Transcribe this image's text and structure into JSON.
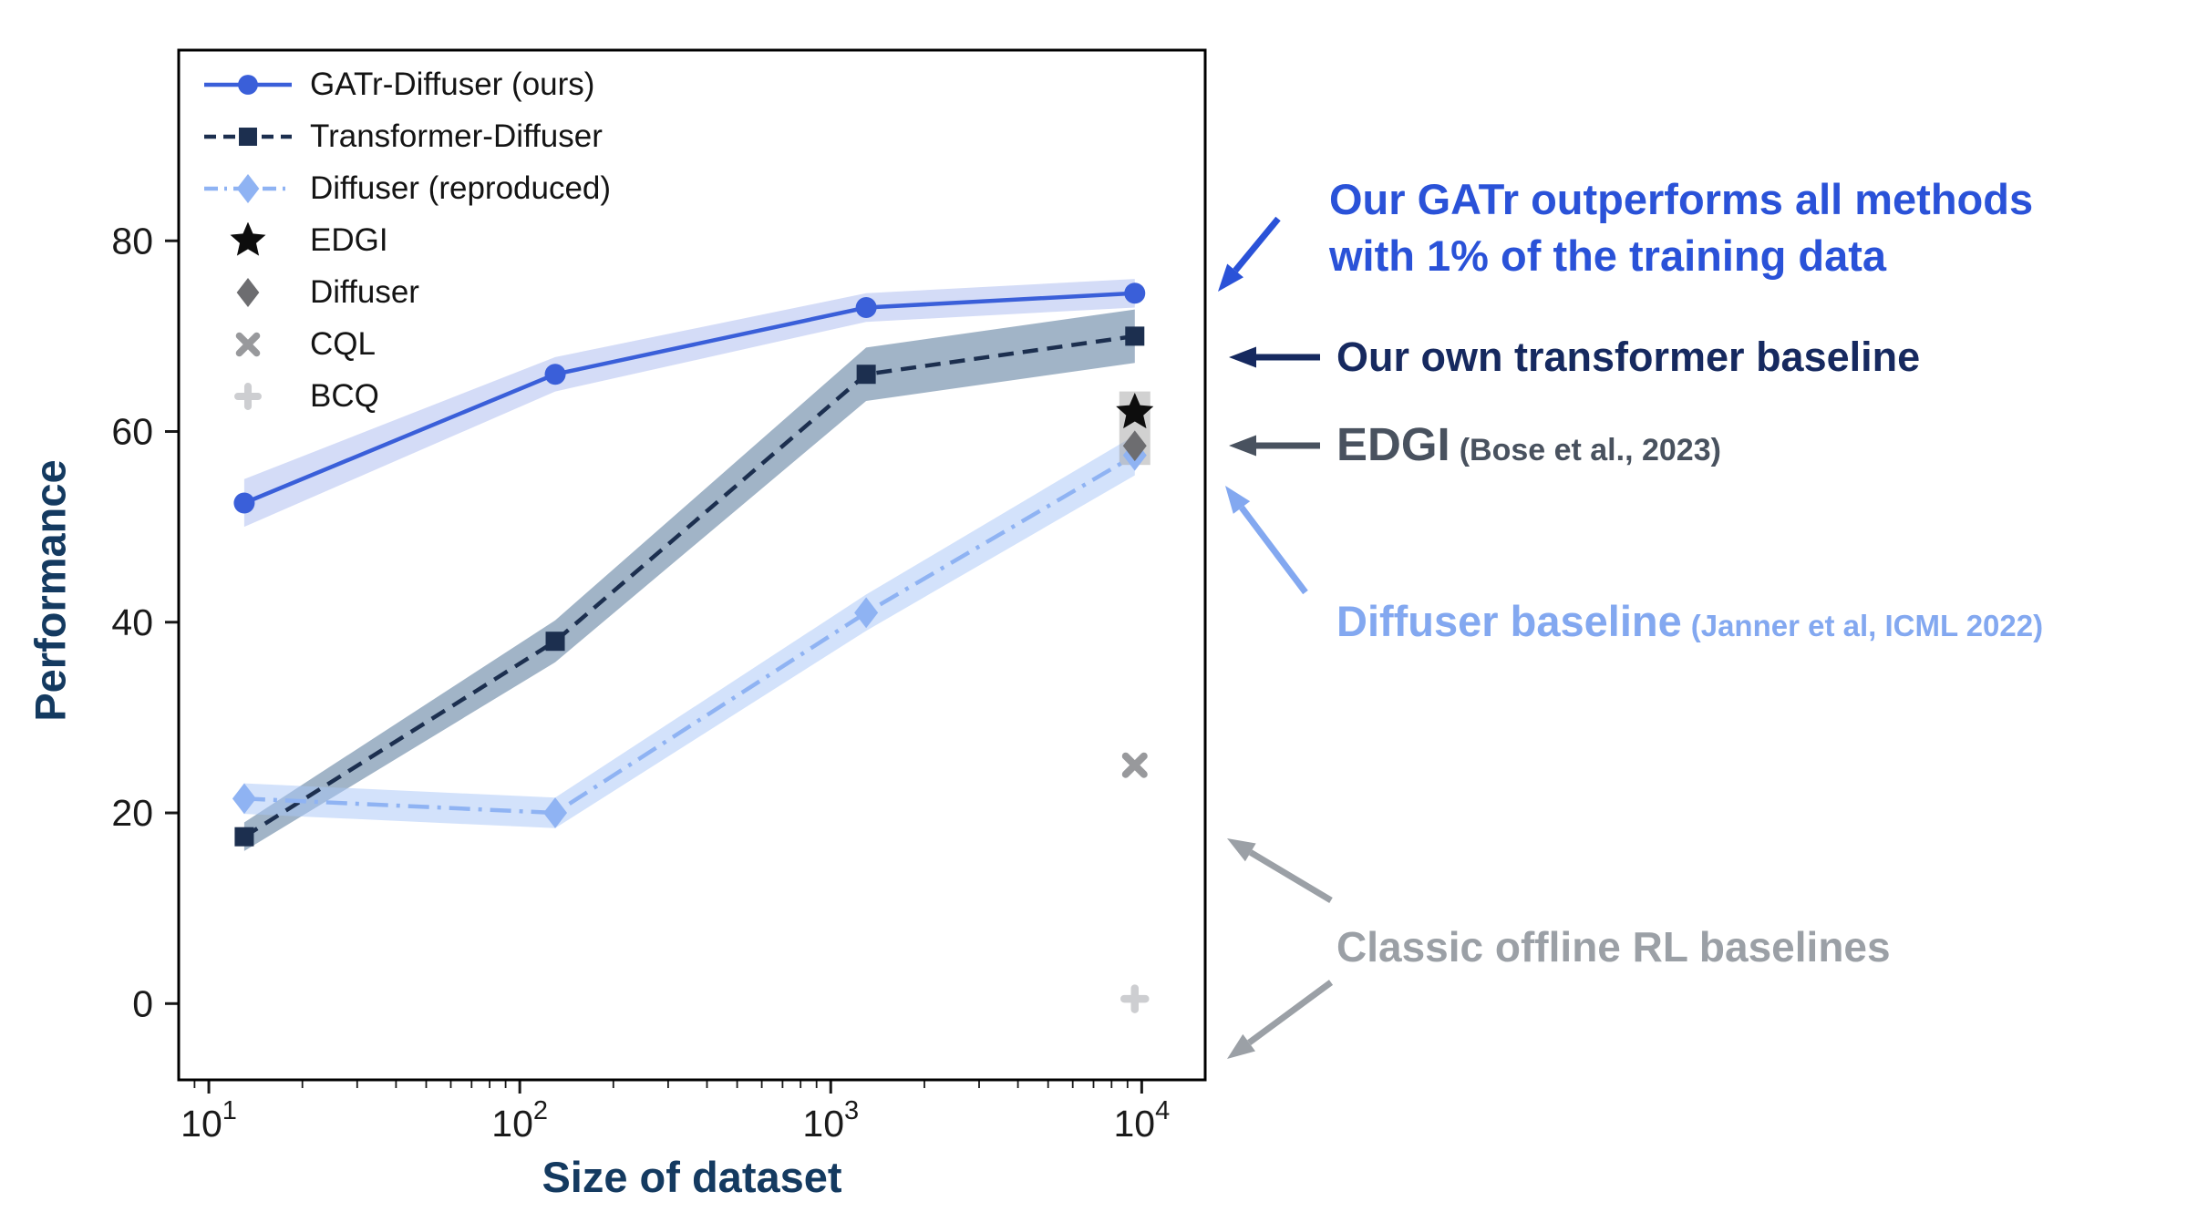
{
  "chart_data": {
    "type": "line",
    "title": "",
    "xlabel": "Size of dataset",
    "ylabel": "Performance",
    "x_scale": "log",
    "xlim": [
      8,
      16000
    ],
    "ylim": [
      -8,
      100
    ],
    "x_ticks": [
      10,
      100,
      1000,
      10000
    ],
    "x_tick_labels": [
      {
        "base": "10",
        "exp": "1"
      },
      {
        "base": "10",
        "exp": "2"
      },
      {
        "base": "10",
        "exp": "3"
      },
      {
        "base": "10",
        "exp": "4"
      }
    ],
    "y_ticks": [
      0,
      20,
      40,
      60,
      80
    ],
    "grid": false,
    "legend_position": "upper-left-inside",
    "x": [
      13,
      130,
      1300,
      9500
    ],
    "series": [
      {
        "name": "GATr-Diffuser (ours)",
        "values": [
          52.5,
          66,
          73,
          74.5
        ],
        "err": [
          2.5,
          1.8,
          1.5,
          1.5
        ],
        "color": "#3a5fd9",
        "band_color": "#3a5fd9",
        "band_opacity": 0.22,
        "line_style": "solid",
        "marker": "circle"
      },
      {
        "name": "Transformer-Diffuser",
        "values": [
          17.5,
          38,
          66,
          70
        ],
        "err": [
          1.5,
          2.2,
          2.8,
          2.8
        ],
        "color": "#1c2f4f",
        "band_color": "#44698f",
        "band_opacity": 0.5,
        "line_style": "dashed",
        "marker": "square"
      },
      {
        "name": "Diffuser (reproduced)",
        "values": [
          21.5,
          20,
          41,
          57.5
        ],
        "err": [
          1.6,
          1.6,
          1.9,
          2.1
        ],
        "color": "#8fb3f3",
        "band_color": "#a8c5f7",
        "band_opacity": 0.5,
        "line_style": "dashdot",
        "marker": "diamond"
      }
    ],
    "scatter": [
      {
        "name": "EDGI",
        "x": 9500,
        "y": 62,
        "marker": "star",
        "color": "#0d0d0d"
      },
      {
        "name": "Diffuser",
        "x": 9500,
        "y": 58.5,
        "marker": "diamond",
        "color": "#6d6d70"
      },
      {
        "name": "CQL",
        "x": 9500,
        "y": 25,
        "marker": "x",
        "color": "#98999c"
      },
      {
        "name": "BCQ",
        "x": 9500,
        "y": 0.5,
        "marker": "plus",
        "color": "#cdced1"
      }
    ],
    "scatter_band": {
      "x": 9500,
      "y_low": 56.5,
      "y_high": 64.2,
      "color": "#9a9a9a",
      "opacity": 0.45
    }
  },
  "annotations": {
    "gatr": {
      "line1": "Our GATr outperforms all methods",
      "line2": "with 1% of the training data",
      "color": "#2a52d8"
    },
    "transformer": {
      "text": "Our own transformer baseline",
      "color": "#16295f"
    },
    "edgi": {
      "text": "EDGI",
      "cite": "(Bose et al., 2023)",
      "color": "#49525f"
    },
    "diffuser": {
      "text": "Diffuser baseline",
      "cite": "(Janner et al, ICML 2022)",
      "color": "#83a8f0"
    },
    "classic": {
      "text": "Classic offline RL baselines",
      "color": "#9ba0a6"
    }
  }
}
